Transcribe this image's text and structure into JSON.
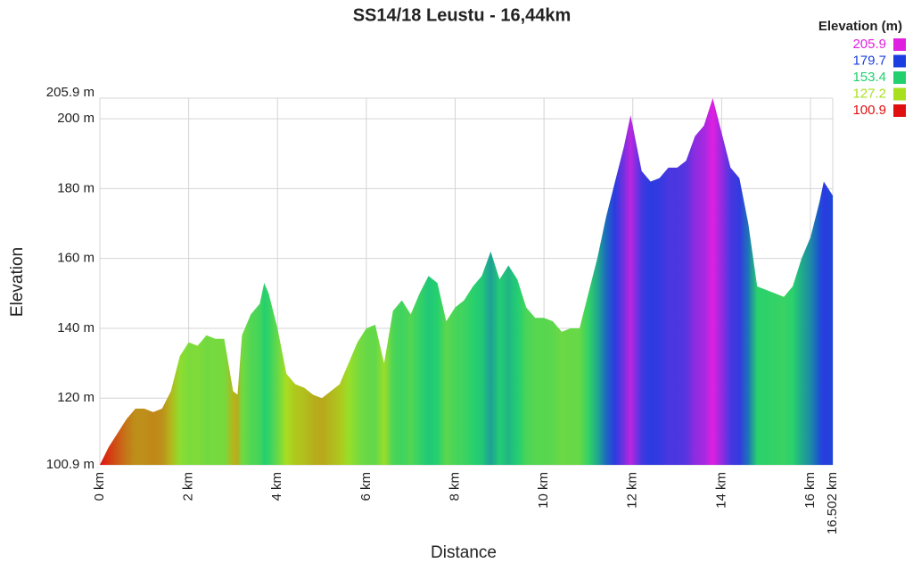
{
  "chart_data": {
    "type": "area",
    "title": "SS14/18 Leustu - 16,44km",
    "x_label": "Distance",
    "y_label": "Elevation",
    "legend_title": "Elevation (m)",
    "legend": [
      {
        "value": 205.9,
        "color": "#e020e0"
      },
      {
        "value": 179.7,
        "color": "#1a3ee0"
      },
      {
        "value": 153.4,
        "color": "#22d070"
      },
      {
        "value": 127.2,
        "color": "#a8e020"
      },
      {
        "value": 100.9,
        "color": "#e01010"
      }
    ],
    "grid": true,
    "xlim": [
      0,
      16.502
    ],
    "ylim": [
      100.9,
      205.9
    ],
    "xticks": [
      {
        "value": 0,
        "label": "0 km"
      },
      {
        "value": 2,
        "label": "2 km"
      },
      {
        "value": 4,
        "label": "4 km"
      },
      {
        "value": 6,
        "label": "6 km"
      },
      {
        "value": 8,
        "label": "8 km"
      },
      {
        "value": 10,
        "label": "10 km"
      },
      {
        "value": 12,
        "label": "12 km"
      },
      {
        "value": 14,
        "label": "14 km"
      },
      {
        "value": 16,
        "label": "16 km"
      },
      {
        "value": 16.502,
        "label": "16.502 km"
      }
    ],
    "yticks": [
      {
        "value": 100.9,
        "label": "100.9 m"
      },
      {
        "value": 120,
        "label": "120 m"
      },
      {
        "value": 140,
        "label": "140 m"
      },
      {
        "value": 160,
        "label": "160 m"
      },
      {
        "value": 180,
        "label": "180 m"
      },
      {
        "value": 200,
        "label": "200 m"
      },
      {
        "value": 205.9,
        "label": "205.9 m"
      }
    ],
    "x": [
      0,
      0.2,
      0.4,
      0.6,
      0.8,
      1.0,
      1.2,
      1.4,
      1.6,
      1.8,
      2.0,
      2.2,
      2.4,
      2.6,
      2.8,
      3.0,
      3.1,
      3.2,
      3.4,
      3.6,
      3.7,
      3.8,
      4.0,
      4.2,
      4.4,
      4.6,
      4.8,
      5.0,
      5.2,
      5.4,
      5.6,
      5.8,
      6.0,
      6.2,
      6.4,
      6.6,
      6.8,
      7.0,
      7.2,
      7.4,
      7.6,
      7.8,
      8.0,
      8.2,
      8.4,
      8.6,
      8.8,
      9.0,
      9.2,
      9.4,
      9.6,
      9.8,
      10.0,
      10.2,
      10.4,
      10.6,
      10.8,
      11.0,
      11.2,
      11.4,
      11.6,
      11.8,
      11.95,
      12.2,
      12.4,
      12.6,
      12.8,
      13.0,
      13.2,
      13.4,
      13.6,
      13.8,
      14.0,
      14.2,
      14.4,
      14.6,
      14.8,
      15.0,
      15.2,
      15.4,
      15.6,
      15.8,
      16.0,
      16.2,
      16.3,
      16.502
    ],
    "values": [
      100.9,
      106,
      110,
      114,
      117,
      117,
      116,
      117,
      122,
      132,
      136,
      135,
      138,
      137,
      137,
      122,
      121,
      138,
      144,
      147,
      153,
      150,
      140,
      127,
      124,
      123,
      121,
      120,
      122,
      124,
      130,
      136,
      140,
      141,
      130,
      145,
      148,
      144,
      150,
      155,
      153,
      142,
      146,
      148,
      152,
      155,
      162,
      154,
      158,
      154,
      146,
      143,
      143,
      142,
      139,
      140,
      140,
      150,
      160,
      172,
      182,
      192,
      201,
      185,
      182,
      183,
      186,
      186,
      188,
      195,
      198,
      205.9,
      196,
      186,
      183,
      170,
      152,
      151,
      150,
      149,
      152,
      160,
      166,
      176,
      182,
      178
    ]
  }
}
